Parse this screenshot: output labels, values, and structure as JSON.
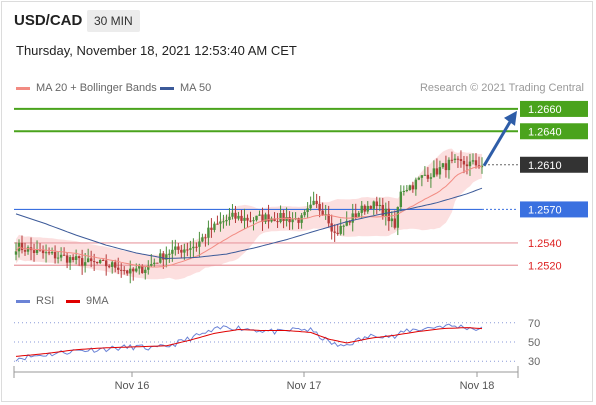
{
  "header": {
    "symbol": "USD/CAD",
    "timeframe": "30 MIN",
    "datetime": "Thursday, November 18, 2021 12:53:40 AM CET",
    "credit": "Research © 2021 Trading Central"
  },
  "legend": {
    "price": [
      {
        "label": "MA 20 + Bollinger Bands",
        "color": "#f28b82"
      },
      {
        "label": "MA 50",
        "color": "#3c5a99"
      }
    ],
    "rsi": [
      {
        "label": "RSI",
        "color": "#6b83d6"
      },
      {
        "label": "9MA",
        "color": "#e00000"
      }
    ]
  },
  "colors": {
    "up": "#4b8f3c",
    "down": "#b53a3a",
    "resistance": "#4aa31c",
    "support": "#e89aa0",
    "pivot": "#3a70e0",
    "current": "#333333",
    "band_fill": "#fbd9d9",
    "arrow": "#2e5da8"
  },
  "chart_data": [
    {
      "type": "candlestick",
      "name": "price",
      "x_ticks": [
        "Nov 16",
        "Nov 17",
        "Nov 18"
      ],
      "ylim": [
        1.2505,
        1.2668
      ],
      "levels": [
        {
          "value": 1.266,
          "label": "1.2660",
          "kind": "resistance"
        },
        {
          "value": 1.264,
          "label": "1.2640",
          "kind": "resistance"
        },
        {
          "value": 1.261,
          "label": "1.2610",
          "kind": "current"
        },
        {
          "value": 1.257,
          "label": "1.2570",
          "kind": "pivot"
        },
        {
          "value": 1.254,
          "label": "1.2540",
          "kind": "support"
        },
        {
          "value": 1.252,
          "label": "1.2520",
          "kind": "support"
        }
      ],
      "close_anchors": [
        [
          0,
          1.2537
        ],
        [
          8,
          1.2531
        ],
        [
          16,
          1.2527
        ],
        [
          22,
          1.2523
        ],
        [
          28,
          1.2521
        ],
        [
          34,
          1.2519
        ],
        [
          38,
          1.2513
        ],
        [
          44,
          1.2519
        ],
        [
          50,
          1.2531
        ],
        [
          56,
          1.2535
        ],
        [
          60,
          1.2538
        ],
        [
          64,
          1.255
        ],
        [
          68,
          1.2558
        ],
        [
          72,
          1.2563
        ],
        [
          78,
          1.2561
        ],
        [
          84,
          1.2563
        ],
        [
          90,
          1.2562
        ],
        [
          95,
          1.2561
        ],
        [
          99,
          1.2574
        ],
        [
          103,
          1.2568
        ],
        [
          106,
          1.2548
        ],
        [
          110,
          1.2558
        ],
        [
          114,
          1.2568
        ],
        [
          118,
          1.2575
        ],
        [
          123,
          1.2567
        ],
        [
          126,
          1.2553
        ],
        [
          128,
          1.2588
        ],
        [
          132,
          1.2592
        ],
        [
          136,
          1.2601
        ],
        [
          139,
          1.2603
        ],
        [
          144,
          1.2611
        ],
        [
          150,
          1.2611
        ],
        [
          155,
          1.261
        ]
      ],
      "ma50_anchors": [
        [
          0,
          1.2566
        ],
        [
          10,
          1.2557
        ],
        [
          20,
          1.2547
        ],
        [
          30,
          1.2538
        ],
        [
          40,
          1.2531
        ],
        [
          50,
          1.2526
        ],
        [
          60,
          1.2527
        ],
        [
          70,
          1.253
        ],
        [
          80,
          1.2536
        ],
        [
          90,
          1.2543
        ],
        [
          100,
          1.2551
        ],
        [
          110,
          1.2559
        ],
        [
          120,
          1.2565
        ],
        [
          130,
          1.257
        ],
        [
          140,
          1.2576
        ],
        [
          150,
          1.2584
        ],
        [
          155,
          1.2589
        ]
      ],
      "arrow_target": 1.266
    },
    {
      "type": "line",
      "name": "rsi",
      "ylim": [
        25,
        75
      ],
      "y_ticks": [
        70,
        50,
        30
      ],
      "rsi_anchors": [
        [
          0,
          33
        ],
        [
          10,
          37
        ],
        [
          20,
          41
        ],
        [
          30,
          43
        ],
        [
          40,
          45
        ],
        [
          46,
          43
        ],
        [
          52,
          47
        ],
        [
          58,
          54
        ],
        [
          64,
          60
        ],
        [
          70,
          66
        ],
        [
          76,
          64
        ],
        [
          82,
          62
        ],
        [
          88,
          60
        ],
        [
          94,
          64
        ],
        [
          98,
          62
        ],
        [
          104,
          50
        ],
        [
          108,
          45
        ],
        [
          114,
          52
        ],
        [
          120,
          58
        ],
        [
          126,
          55
        ],
        [
          130,
          62
        ],
        [
          136,
          64
        ],
        [
          142,
          67
        ],
        [
          148,
          66
        ],
        [
          155,
          63
        ]
      ],
      "ma9_anchors": [
        [
          0,
          35
        ],
        [
          10,
          38
        ],
        [
          20,
          42
        ],
        [
          30,
          44
        ],
        [
          40,
          45
        ],
        [
          50,
          46
        ],
        [
          58,
          52
        ],
        [
          66,
          59
        ],
        [
          74,
          63
        ],
        [
          82,
          62
        ],
        [
          90,
          62
        ],
        [
          98,
          60
        ],
        [
          104,
          53
        ],
        [
          110,
          49
        ],
        [
          118,
          54
        ],
        [
          126,
          57
        ],
        [
          134,
          61
        ],
        [
          142,
          64
        ],
        [
          150,
          65
        ],
        [
          155,
          64
        ]
      ]
    }
  ]
}
